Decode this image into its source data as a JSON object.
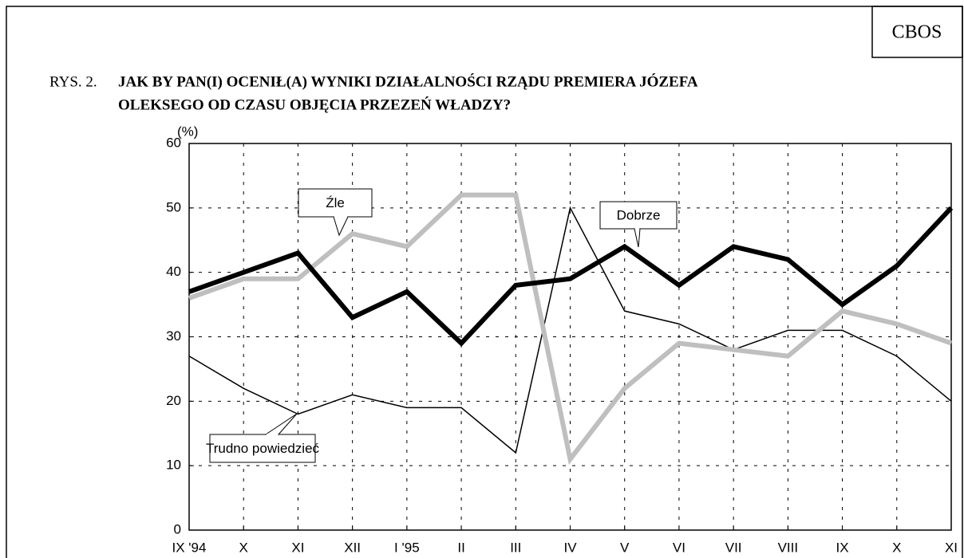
{
  "header": {
    "corner": "CBOS",
    "figure": "RYS. 2.",
    "title_lines": [
      "JAK BY PAN(I) OCENIŁ(A) WYNIKI DZIAŁALNOŚCI RZĄDU PREMIERA JÓZEFA",
      "OLEKSEGO OD CZASU OBJĘCIA PRZEZEŃ WŁADZY?"
    ]
  },
  "chart_data": {
    "type": "line",
    "y_label": "(%)",
    "categories": [
      "IX '94",
      "X",
      "XI",
      "XII",
      "I '95",
      "II",
      "III",
      "IV",
      "V",
      "VI",
      "VII",
      "VIII",
      "IX",
      "X",
      "XI"
    ],
    "series": [
      {
        "name": "Dobrze",
        "color": "#000000",
        "values": [
          37,
          40,
          43,
          33,
          37,
          29,
          38,
          39,
          44,
          38,
          44,
          42,
          35,
          41,
          50
        ]
      },
      {
        "name": "Źle",
        "color": "#bfbfbf",
        "values": [
          36,
          39,
          39,
          46,
          44,
          52,
          52,
          11,
          22,
          29,
          28,
          27,
          34,
          32,
          29
        ]
      },
      {
        "name": "Trudno powiedzieć",
        "color": "#000000",
        "values": [
          27,
          22,
          18,
          21,
          19,
          19,
          12,
          50,
          34,
          32,
          28,
          31,
          31,
          27,
          20
        ]
      }
    ],
    "ylim": [
      0,
      60
    ],
    "yticks": [
      0,
      10,
      20,
      30,
      40,
      50,
      60
    ],
    "grid": true
  }
}
